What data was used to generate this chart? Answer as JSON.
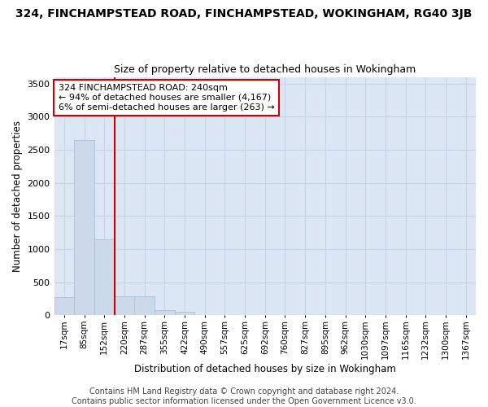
{
  "title": "324, FINCHAMPSTEAD ROAD, FINCHAMPSTEAD, WOKINGHAM, RG40 3JB",
  "subtitle": "Size of property relative to detached houses in Wokingham",
  "xlabel": "Distribution of detached houses by size in Wokingham",
  "ylabel": "Number of detached properties",
  "categories": [
    "17sqm",
    "85sqm",
    "152sqm",
    "220sqm",
    "287sqm",
    "355sqm",
    "422sqm",
    "490sqm",
    "557sqm",
    "625sqm",
    "692sqm",
    "760sqm",
    "827sqm",
    "895sqm",
    "962sqm",
    "1030sqm",
    "1097sqm",
    "1165sqm",
    "1232sqm",
    "1300sqm",
    "1367sqm"
  ],
  "values": [
    270,
    2650,
    1150,
    280,
    280,
    80,
    50,
    0,
    0,
    0,
    0,
    0,
    0,
    0,
    0,
    0,
    0,
    0,
    0,
    0,
    0
  ],
  "bar_color": "#ccd9ea",
  "bar_edge_color": "#aabfd8",
  "red_line_index": 2.5,
  "marker_color": "#cc0000",
  "annotation_text": "324 FINCHAMPSTEAD ROAD: 240sqm\n← 94% of detached houses are smaller (4,167)\n6% of semi-detached houses are larger (263) →",
  "annotation_box_facecolor": "#ffffff",
  "annotation_box_edgecolor": "#cc0000",
  "ylim": [
    0,
    3600
  ],
  "yticks": [
    0,
    500,
    1000,
    1500,
    2000,
    2500,
    3000,
    3500
  ],
  "grid_color": "#c8d4e8",
  "bg_color": "#dce6f5",
  "footer": "Contains HM Land Registry data © Crown copyright and database right 2024.\nContains public sector information licensed under the Open Government Licence v3.0.",
  "title_fontsize": 10,
  "subtitle_fontsize": 9,
  "xlabel_fontsize": 8.5,
  "ylabel_fontsize": 8.5,
  "tick_fontsize": 8,
  "xtick_fontsize": 7.5,
  "footer_fontsize": 7,
  "annotation_fontsize": 8
}
